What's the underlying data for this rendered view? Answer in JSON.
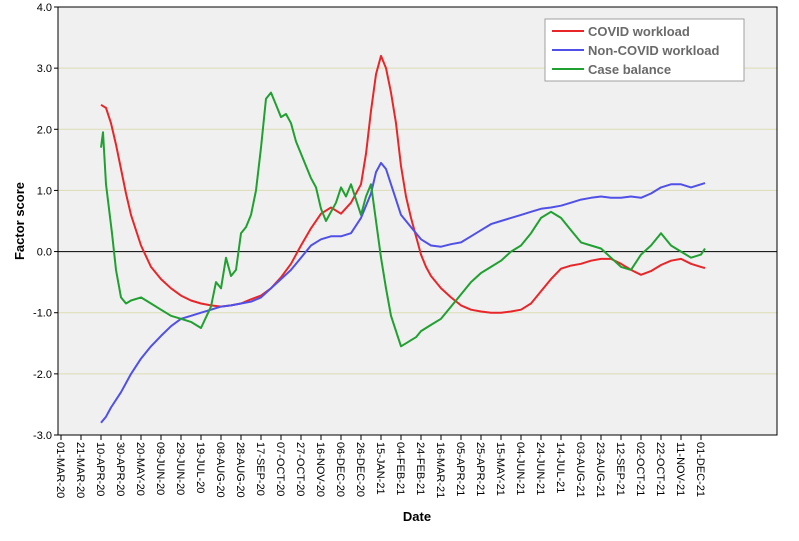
{
  "chart_data": {
    "type": "line",
    "xlabel": "Date",
    "ylabel": "Factor score",
    "ylim": [
      -3.0,
      4.0
    ],
    "y_ticks": [
      "4.0",
      "3.0",
      "2.0",
      "1.0",
      "0.0",
      "-1.0",
      "-2.0",
      "-3.0"
    ],
    "x_ticks": [
      "01-MAR-20",
      "21-MAR-20",
      "10-APR-20",
      "30-APR-20",
      "20-MAY-20",
      "09-JUN-20",
      "29-JUN-20",
      "19-JUL-20",
      "08-AUG-20",
      "28-AUG-20",
      "17-SEP-20",
      "07-OCT-20",
      "27-OCT-20",
      "16-NOV-20",
      "06-DEC-20",
      "26-DEC-20",
      "15-JAN-21",
      "04-FEB-21",
      "24-FEB-21",
      "16-MAR-21",
      "05-APR-21",
      "25-APR-21",
      "15-MAY-21",
      "04-JUN-21",
      "24-JUN-21",
      "14-JUL-21",
      "03-AUG-21",
      "23-AUG-21",
      "12-SEP-21",
      "02-OCT-21",
      "22-OCT-21",
      "11-NOV-21",
      "01-DEC-21"
    ],
    "grid": "horizontal",
    "reference_line_y": 0,
    "legend_position": "top-right",
    "colors": {
      "background": "#f0f0f0",
      "gridline": "#dcdcb4",
      "covid": "#e8262a",
      "noncovid": "#5050e8",
      "balance": "#20a030"
    },
    "series": [
      {
        "name": "COVID workload",
        "color": "#e8262a",
        "x": [
          "10-APR-20",
          "15-APR-20",
          "20-APR-20",
          "25-APR-20",
          "30-APR-20",
          "05-MAY-20",
          "10-MAY-20",
          "20-MAY-20",
          "30-MAY-20",
          "09-JUN-20",
          "19-JUN-20",
          "29-JUN-20",
          "09-JUL-20",
          "19-JUL-20",
          "29-JUL-20",
          "08-AUG-20",
          "18-AUG-20",
          "28-AUG-20",
          "07-SEP-20",
          "17-SEP-20",
          "27-SEP-20",
          "07-OCT-20",
          "17-OCT-20",
          "27-OCT-20",
          "06-NOV-20",
          "16-NOV-20",
          "26-NOV-20",
          "06-DEC-20",
          "16-DEC-20",
          "26-DEC-20",
          "31-DEC-20",
          "05-JAN-21",
          "10-JAN-21",
          "15-JAN-21",
          "20-JAN-21",
          "25-JAN-21",
          "30-JAN-21",
          "04-FEB-21",
          "09-FEB-21",
          "14-FEB-21",
          "19-FEB-21",
          "24-FEB-21",
          "01-MAR-21",
          "06-MAR-21",
          "11-MAR-21",
          "16-MAR-21",
          "26-MAR-21",
          "05-APR-21",
          "15-APR-21",
          "25-APR-21",
          "05-MAY-21",
          "15-MAY-21",
          "25-MAY-21",
          "04-JUN-21",
          "14-JUN-21",
          "24-JUN-21",
          "04-JUL-21",
          "14-JUL-21",
          "24-JUL-21",
          "03-AUG-21",
          "13-AUG-21",
          "23-AUG-21",
          "02-SEP-21",
          "12-SEP-21",
          "22-SEP-21",
          "02-OCT-21",
          "12-OCT-21",
          "22-OCT-21",
          "01-NOV-21",
          "11-NOV-21",
          "21-NOV-21",
          "01-DEC-21",
          "05-DEC-21"
        ],
        "y": [
          2.4,
          2.35,
          2.1,
          1.75,
          1.35,
          0.95,
          0.6,
          0.1,
          -0.25,
          -0.45,
          -0.6,
          -0.72,
          -0.8,
          -0.85,
          -0.88,
          -0.9,
          -0.88,
          -0.85,
          -0.78,
          -0.72,
          -0.6,
          -0.42,
          -0.2,
          0.1,
          0.38,
          0.62,
          0.72,
          0.62,
          0.8,
          1.1,
          1.6,
          2.3,
          2.9,
          3.2,
          3.0,
          2.6,
          2.1,
          1.4,
          0.9,
          0.55,
          0.25,
          -0.05,
          -0.25,
          -0.4,
          -0.5,
          -0.6,
          -0.75,
          -0.88,
          -0.95,
          -0.98,
          -1.0,
          -1.0,
          -0.98,
          -0.95,
          -0.85,
          -0.65,
          -0.45,
          -0.28,
          -0.23,
          -0.2,
          -0.15,
          -0.12,
          -0.12,
          -0.2,
          -0.3,
          -0.38,
          -0.32,
          -0.22,
          -0.15,
          -0.12,
          -0.2,
          -0.25,
          -0.27
        ]
      },
      {
        "name": "Non-COVID workload",
        "color": "#5050e8",
        "x": [
          "10-APR-20",
          "15-APR-20",
          "20-APR-20",
          "30-APR-20",
          "10-MAY-20",
          "20-MAY-20",
          "30-MAY-20",
          "09-JUN-20",
          "19-JUN-20",
          "29-JUN-20",
          "09-JUL-20",
          "19-JUL-20",
          "29-JUL-20",
          "08-AUG-20",
          "18-AUG-20",
          "28-AUG-20",
          "07-SEP-20",
          "17-SEP-20",
          "27-SEP-20",
          "07-OCT-20",
          "17-OCT-20",
          "27-OCT-20",
          "06-NOV-20",
          "16-NOV-20",
          "26-NOV-20",
          "06-DEC-20",
          "16-DEC-20",
          "26-DEC-20",
          "05-JAN-21",
          "10-JAN-21",
          "15-JAN-21",
          "20-JAN-21",
          "25-JAN-21",
          "30-JAN-21",
          "04-FEB-21",
          "14-FEB-21",
          "24-FEB-21",
          "06-MAR-21",
          "16-MAR-21",
          "26-MAR-21",
          "05-APR-21",
          "15-APR-21",
          "25-APR-21",
          "05-MAY-21",
          "15-MAY-21",
          "25-MAY-21",
          "04-JUN-21",
          "14-JUN-21",
          "24-JUN-21",
          "04-JUL-21",
          "14-JUL-21",
          "24-JUL-21",
          "03-AUG-21",
          "13-AUG-21",
          "23-AUG-21",
          "02-SEP-21",
          "12-SEP-21",
          "22-SEP-21",
          "02-OCT-21",
          "12-OCT-21",
          "22-OCT-21",
          "01-NOV-21",
          "11-NOV-21",
          "21-NOV-21",
          "01-DEC-21",
          "05-DEC-21"
        ],
        "y": [
          -2.8,
          -2.7,
          -2.55,
          -2.3,
          -2.0,
          -1.75,
          -1.55,
          -1.38,
          -1.22,
          -1.1,
          -1.05,
          -1.0,
          -0.95,
          -0.9,
          -0.88,
          -0.85,
          -0.82,
          -0.75,
          -0.6,
          -0.45,
          -0.3,
          -0.1,
          0.1,
          0.2,
          0.25,
          0.25,
          0.3,
          0.55,
          0.95,
          1.3,
          1.45,
          1.35,
          1.1,
          0.85,
          0.6,
          0.4,
          0.2,
          0.1,
          0.08,
          0.12,
          0.15,
          0.25,
          0.35,
          0.45,
          0.5,
          0.55,
          0.6,
          0.65,
          0.7,
          0.72,
          0.75,
          0.8,
          0.85,
          0.88,
          0.9,
          0.88,
          0.88,
          0.9,
          0.88,
          0.95,
          1.05,
          1.1,
          1.1,
          1.05,
          1.1,
          1.12
        ]
      },
      {
        "name": "Case balance",
        "color": "#20a030",
        "x": [
          "10-APR-20",
          "12-APR-20",
          "15-APR-20",
          "18-APR-20",
          "21-APR-20",
          "25-APR-20",
          "30-APR-20",
          "05-MAY-20",
          "10-MAY-20",
          "20-MAY-20",
          "30-MAY-20",
          "09-JUN-20",
          "19-JUN-20",
          "29-JUN-20",
          "09-JUL-20",
          "19-JUL-20",
          "29-JUL-20",
          "03-AUG-20",
          "08-AUG-20",
          "13-AUG-20",
          "18-AUG-20",
          "23-AUG-20",
          "28-AUG-20",
          "02-SEP-20",
          "07-SEP-20",
          "12-SEP-20",
          "17-SEP-20",
          "22-SEP-20",
          "27-SEP-20",
          "02-OCT-20",
          "07-OCT-20",
          "12-OCT-20",
          "17-OCT-20",
          "22-OCT-20",
          "27-OCT-20",
          "01-NOV-20",
          "06-NOV-20",
          "11-NOV-20",
          "16-NOV-20",
          "21-NOV-20",
          "26-NOV-20",
          "01-DEC-20",
          "06-DEC-20",
          "11-DEC-20",
          "16-DEC-20",
          "21-DEC-20",
          "26-DEC-20",
          "31-DEC-20",
          "05-JAN-21",
          "10-JAN-21",
          "15-JAN-21",
          "20-JAN-21",
          "25-JAN-21",
          "30-JAN-21",
          "04-FEB-21",
          "09-FEB-21",
          "14-FEB-21",
          "19-FEB-21",
          "24-FEB-21",
          "06-MAR-21",
          "16-MAR-21",
          "26-MAR-21",
          "05-APR-21",
          "15-APR-21",
          "25-APR-21",
          "05-MAY-21",
          "15-MAY-21",
          "25-MAY-21",
          "04-JUN-21",
          "14-JUN-21",
          "24-JUN-21",
          "04-JUL-21",
          "09-JUL-21",
          "14-JUL-21",
          "24-JUL-21",
          "03-AUG-21",
          "13-AUG-21",
          "23-AUG-21",
          "02-SEP-21",
          "12-SEP-21",
          "22-SEP-21",
          "02-OCT-21",
          "12-OCT-21",
          "22-OCT-21",
          "01-NOV-21",
          "11-NOV-21",
          "21-NOV-21",
          "01-DEC-21",
          "05-DEC-21"
        ],
        "y": [
          1.7,
          1.95,
          1.1,
          0.7,
          0.3,
          -0.3,
          -0.75,
          -0.85,
          -0.8,
          -0.75,
          -0.85,
          -0.95,
          -1.05,
          -1.1,
          -1.15,
          -1.25,
          -0.9,
          -0.5,
          -0.6,
          -0.1,
          -0.4,
          -0.3,
          0.3,
          0.4,
          0.6,
          1.0,
          1.7,
          2.5,
          2.6,
          2.4,
          2.2,
          2.25,
          2.1,
          1.8,
          1.6,
          1.4,
          1.2,
          1.05,
          0.7,
          0.5,
          0.65,
          0.8,
          1.05,
          0.9,
          1.1,
          0.85,
          0.6,
          0.9,
          1.1,
          0.5,
          -0.1,
          -0.6,
          -1.05,
          -1.3,
          -1.55,
          -1.5,
          -1.45,
          -1.4,
          -1.3,
          -1.2,
          -1.1,
          -0.9,
          -0.7,
          -0.5,
          -0.35,
          -0.25,
          -0.15,
          0.0,
          0.1,
          0.3,
          0.55,
          0.65,
          0.6,
          0.55,
          0.35,
          0.15,
          0.1,
          0.05,
          -0.1,
          -0.25,
          -0.3,
          -0.05,
          0.1,
          0.3,
          0.1,
          0.0,
          -0.1,
          -0.05,
          0.05
        ]
      }
    ]
  }
}
